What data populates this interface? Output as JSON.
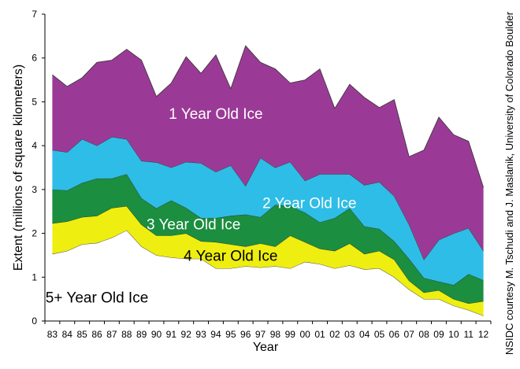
{
  "chart_data": {
    "type": "area",
    "stacked": true,
    "title": "",
    "xlabel": "Year",
    "ylabel": "Extent (millions of square kilometers)",
    "ylim": [
      0,
      7
    ],
    "yticks": [
      "0",
      "1",
      "2",
      "3",
      "4",
      "5",
      "6",
      "7"
    ],
    "categories": [
      "83",
      "84",
      "85",
      "86",
      "87",
      "88",
      "89",
      "90",
      "91",
      "92",
      "93",
      "94",
      "95",
      "96",
      "97",
      "98",
      "99",
      "00",
      "01",
      "02",
      "03",
      "04",
      "05",
      "06",
      "07",
      "08",
      "09",
      "10",
      "11",
      "12"
    ],
    "series": [
      {
        "name": "5+ Year Old Ice",
        "label": "5+ Year Old Ice",
        "color": "#ffffff",
        "label_color": "#000000",
        "values": [
          1.53,
          1.6,
          1.75,
          1.78,
          1.9,
          2.07,
          1.7,
          1.5,
          1.45,
          1.42,
          1.42,
          1.2,
          1.2,
          1.25,
          1.22,
          1.25,
          1.2,
          1.35,
          1.3,
          1.2,
          1.27,
          1.18,
          1.2,
          1.0,
          0.72,
          0.5,
          0.5,
          0.35,
          0.25,
          0.12
        ]
      },
      {
        "name": "4 Year Old Ice",
        "label": "4 Year Old Ice",
        "color": "#eeee11",
        "label_color": "#000000",
        "values": [
          0.7,
          0.67,
          0.62,
          0.62,
          0.68,
          0.55,
          0.5,
          0.45,
          0.5,
          0.58,
          0.4,
          0.6,
          0.55,
          0.45,
          0.55,
          0.45,
          0.75,
          0.45,
          0.35,
          0.4,
          0.5,
          0.35,
          0.4,
          0.4,
          0.2,
          0.15,
          0.2,
          0.15,
          0.15,
          0.33
        ]
      },
      {
        "name": "3 Year Old Ice",
        "label": "3 Year Old Ice",
        "color": "#1b8e3f",
        "label_color": "#ffffff",
        "values": [
          0.77,
          0.71,
          0.78,
          0.85,
          0.67,
          0.73,
          0.6,
          0.62,
          0.8,
          0.58,
          0.53,
          0.55,
          0.65,
          0.73,
          0.6,
          0.95,
          0.68,
          0.67,
          0.6,
          0.75,
          0.8,
          0.63,
          0.5,
          0.42,
          0.5,
          0.33,
          0.2,
          0.32,
          0.67,
          0.48
        ]
      },
      {
        "name": "2 Year Old Ice",
        "label": "2 Year Old Ice",
        "color": "#2ebde6",
        "label_color": "#ffffff",
        "values": [
          0.9,
          0.87,
          1.0,
          0.75,
          0.95,
          0.8,
          0.85,
          1.05,
          0.75,
          1.05,
          1.25,
          1.05,
          1.15,
          0.65,
          1.35,
          0.85,
          1.0,
          0.73,
          1.1,
          1.0,
          0.78,
          0.94,
          1.07,
          1.03,
          0.78,
          0.42,
          0.95,
          1.18,
          1.05,
          0.67
        ]
      },
      {
        "name": "1 Year Old Ice",
        "label": "1 Year Old Ice",
        "color": "#9b3a96",
        "label_color": "#ffffff",
        "values": [
          1.72,
          1.5,
          1.4,
          1.9,
          1.75,
          2.05,
          2.3,
          1.5,
          1.93,
          2.4,
          2.05,
          2.67,
          1.75,
          3.2,
          2.18,
          2.25,
          1.8,
          2.3,
          2.4,
          1.5,
          2.05,
          2.0,
          1.7,
          2.2,
          1.55,
          2.5,
          2.8,
          2.25,
          1.98,
          1.45
        ]
      }
    ],
    "grid": false,
    "legend": "inline labels"
  },
  "credit": "NSIDC courtesy M. Tschudi and J. Maslanik, University of Colorado Boulder"
}
